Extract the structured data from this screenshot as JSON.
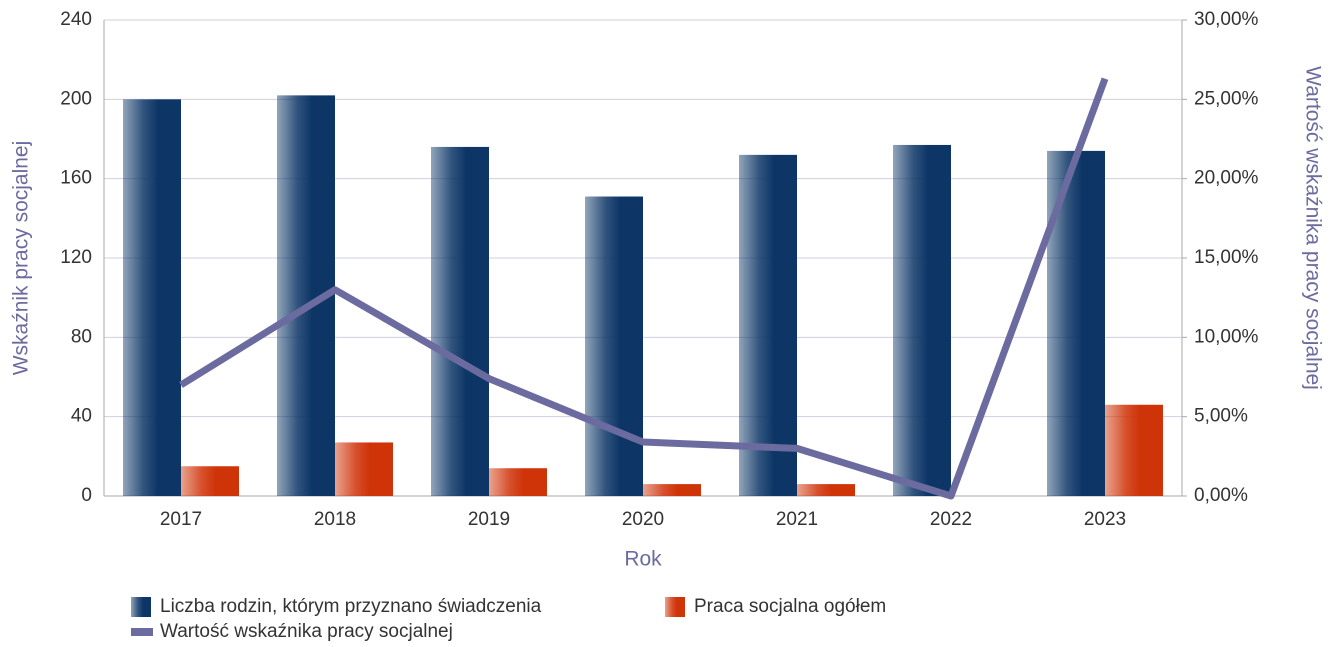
{
  "chart_data": {
    "type": "bar",
    "x_label": "Rok",
    "y_label": "Wskaźnik pracy socjalnej",
    "y2_label": "Wartość wskaźnika pracy socjalnej",
    "categories": [
      "2017",
      "2018",
      "2019",
      "2020",
      "2021",
      "2022",
      "2023"
    ],
    "series": [
      {
        "name": "Liczba rodzin, którym przyznano świadczenia",
        "type": "bar",
        "color": "#0d3667",
        "values": [
          200,
          202,
          176,
          151,
          172,
          177,
          174
        ]
      },
      {
        "name": "Praca socjalna ogółem",
        "type": "bar",
        "color": "#cf3308",
        "values": [
          15,
          27,
          14,
          6,
          6,
          0,
          46
        ]
      },
      {
        "name": "Wartość wskaźnika pracy socjalnej",
        "type": "line",
        "axis": "y2",
        "color": "#6c6b9f",
        "values": [
          7.0,
          13.0,
          7.4,
          3.4,
          3.0,
          0,
          26.3
        ]
      }
    ],
    "ylim": [
      0,
      240
    ],
    "yticks": [
      0,
      40,
      80,
      120,
      160,
      200,
      240
    ],
    "y2lim": [
      0,
      30
    ],
    "y2ticks": [
      {
        "value": 0,
        "label": "0,00%"
      },
      {
        "value": 5,
        "label": "5,00%"
      },
      {
        "value": 10,
        "label": "10,00%"
      },
      {
        "value": 15,
        "label": "15,00%"
      },
      {
        "value": 20,
        "label": "20,00%"
      },
      {
        "value": 25,
        "label": "25,00%"
      },
      {
        "value": 30,
        "label": "30,00%"
      }
    ],
    "grid": true
  }
}
